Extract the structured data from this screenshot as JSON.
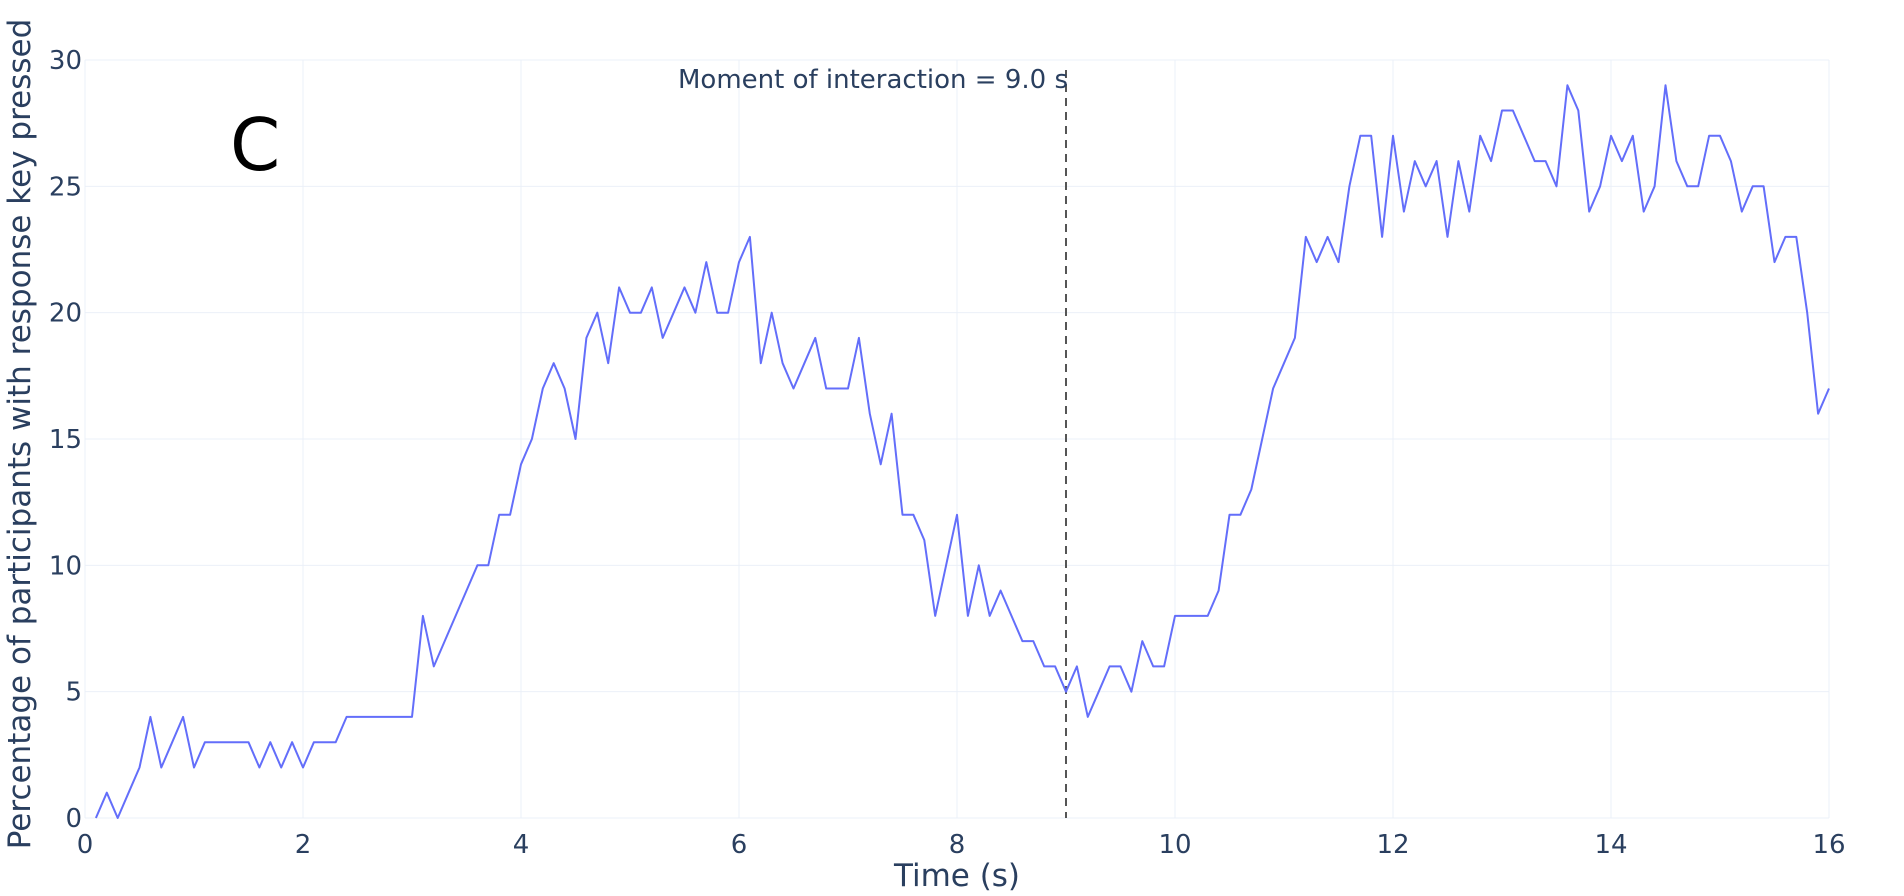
{
  "chart_data": {
    "type": "line",
    "xlabel": "Time (s)",
    "ylabel": "Percentage of participants with response key pressed",
    "xlim": [
      0,
      16
    ],
    "ylim": [
      0,
      30
    ],
    "x_ticks": [
      0,
      2,
      4,
      6,
      8,
      10,
      12,
      14,
      16
    ],
    "y_ticks": [
      0,
      5,
      10,
      15,
      20,
      25,
      30
    ],
    "grid": true,
    "panel_label": "C",
    "line_color": "#636efa",
    "annotation": {
      "x": 9.0,
      "text": "Moment of interaction = 9.0 s",
      "color": "#555555"
    },
    "series": [
      {
        "x": [
          0.1,
          0.2,
          0.3,
          0.4,
          0.5,
          0.6,
          0.7,
          0.8,
          0.9,
          1.0,
          1.1,
          1.2,
          1.3,
          1.4,
          1.5,
          1.6,
          1.7,
          1.8,
          1.9,
          2.0,
          2.1,
          2.2,
          2.3,
          2.4,
          2.5,
          2.6,
          2.7,
          2.8,
          2.9,
          3.0,
          3.1,
          3.2,
          3.3,
          3.4,
          3.5,
          3.6,
          3.7,
          3.8,
          3.9,
          4.0,
          4.1,
          4.2,
          4.3,
          4.4,
          4.5,
          4.6,
          4.7,
          4.8,
          4.9,
          5.0,
          5.1,
          5.2,
          5.3,
          5.4,
          5.5,
          5.6,
          5.7,
          5.8,
          5.9,
          6.0,
          6.1,
          6.2,
          6.3,
          6.4,
          6.5,
          6.6,
          6.7,
          6.8,
          6.9,
          7.0,
          7.1,
          7.2,
          7.3,
          7.4,
          7.5,
          7.6,
          7.7,
          7.8,
          7.9,
          8.0,
          8.1,
          8.2,
          8.3,
          8.4,
          8.5,
          8.6,
          8.7,
          8.8,
          8.9,
          9.0,
          9.1,
          9.2,
          9.3,
          9.4,
          9.5,
          9.6,
          9.7,
          9.8,
          9.9,
          10.0,
          10.1,
          10.2,
          10.3,
          10.4,
          10.5,
          10.6,
          10.7,
          10.8,
          10.9,
          11.0,
          11.1,
          11.2,
          11.3,
          11.4,
          11.5,
          11.6,
          11.7,
          11.8,
          11.9,
          12.0,
          12.1,
          12.2,
          12.3,
          12.4,
          12.5,
          12.6,
          12.7,
          12.8,
          12.9,
          13.0,
          13.1,
          13.2,
          13.3,
          13.4,
          13.5,
          13.6,
          13.7,
          13.8,
          13.9,
          14.0,
          14.1,
          14.2,
          14.3,
          14.4,
          14.5,
          14.6,
          14.7,
          14.8,
          14.9,
          15.0,
          15.1,
          15.2,
          15.3,
          15.4,
          15.5,
          15.6,
          15.7,
          15.8,
          15.9,
          16.0
        ],
        "y": [
          0,
          1,
          0,
          1,
          2,
          4,
          2,
          3,
          4,
          2,
          3,
          3,
          3,
          3,
          3,
          2,
          3,
          2,
          3,
          2,
          3,
          3,
          3,
          4,
          4,
          4,
          4,
          4,
          4,
          4,
          8,
          6,
          7,
          8,
          9,
          10,
          10,
          12,
          12,
          14,
          15,
          17,
          18,
          17,
          15,
          19,
          20,
          18,
          21,
          20,
          20,
          21,
          19,
          20,
          21,
          20,
          22,
          20,
          20,
          22,
          23,
          18,
          20,
          18,
          17,
          18,
          19,
          17,
          17,
          17,
          19,
          16,
          14,
          16,
          12,
          12,
          11,
          8,
          10,
          12,
          8,
          10,
          8,
          9,
          8,
          7,
          7,
          6,
          6,
          5,
          6,
          4,
          5,
          6,
          6,
          5,
          7,
          6,
          6,
          8,
          8,
          8,
          8,
          9,
          12,
          12,
          13,
          15,
          17,
          18,
          19,
          23,
          22,
          23,
          22,
          25,
          27,
          27,
          23,
          27,
          24,
          26,
          25,
          26,
          23,
          26,
          24,
          27,
          26,
          28,
          28,
          27,
          26,
          26,
          25,
          29,
          28,
          24,
          25,
          27,
          26,
          27,
          24,
          25,
          29,
          26,
          25,
          25,
          27,
          27,
          26,
          24,
          25,
          25,
          22,
          23,
          23,
          20,
          16,
          17
        ]
      }
    ]
  }
}
